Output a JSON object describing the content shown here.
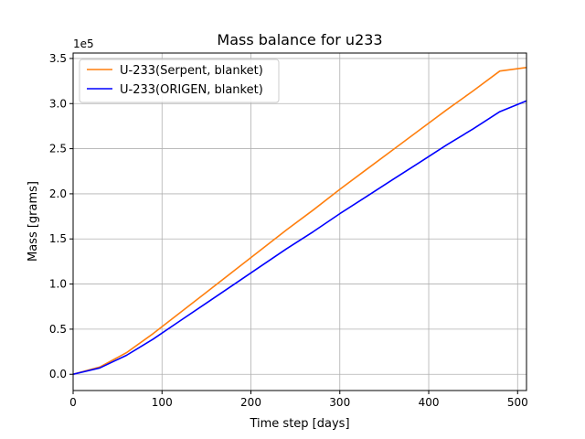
{
  "chart_data": {
    "type": "line",
    "title": "Mass balance for u233",
    "xlabel": "Time step [days]",
    "ylabel": "Mass [grams]",
    "y_offset_label": "1e5",
    "xlim": [
      0,
      510
    ],
    "ylim": [
      -0.18,
      3.56
    ],
    "x_ticks": [
      0,
      100,
      200,
      300,
      400,
      500
    ],
    "x_tick_labels": [
      "0",
      "100",
      "200",
      "300",
      "400",
      "500"
    ],
    "y_ticks": [
      0.0,
      0.5,
      1.0,
      1.5,
      2.0,
      2.5,
      3.0,
      3.5
    ],
    "y_tick_labels": [
      "0.0",
      "0.5",
      "1.0",
      "1.5",
      "2.0",
      "2.5",
      "3.0",
      "3.5"
    ],
    "grid": true,
    "legend_position": "top-left",
    "series": [
      {
        "name": "U-233(Serpent, blanket)",
        "color": "#ff7f0e",
        "x": [
          0,
          30,
          60,
          90,
          120,
          150,
          180,
          210,
          240,
          270,
          300,
          330,
          360,
          390,
          420,
          450,
          480,
          510
        ],
        "y": [
          0.0,
          0.08,
          0.24,
          0.45,
          0.68,
          0.91,
          1.14,
          1.37,
          1.6,
          1.82,
          2.05,
          2.27,
          2.49,
          2.71,
          2.93,
          3.14,
          3.36,
          3.4
        ]
      },
      {
        "name": "U-233(ORIGEN, blanket)",
        "color": "#0000ff",
        "x": [
          0,
          30,
          60,
          90,
          120,
          150,
          180,
          210,
          240,
          270,
          300,
          330,
          360,
          390,
          420,
          450,
          480,
          510
        ],
        "y": [
          0.0,
          0.07,
          0.21,
          0.39,
          0.59,
          0.79,
          0.99,
          1.19,
          1.39,
          1.58,
          1.78,
          1.97,
          2.16,
          2.35,
          2.54,
          2.72,
          2.91,
          3.03
        ]
      }
    ]
  }
}
